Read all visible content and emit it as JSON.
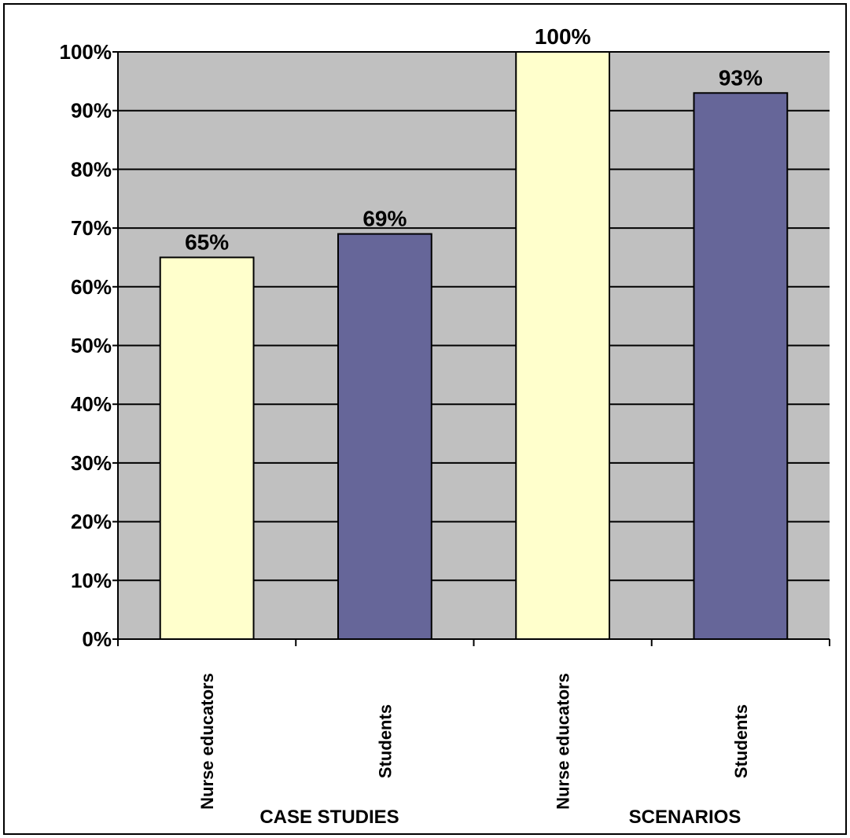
{
  "chart_data": {
    "type": "bar",
    "categories": [
      "Nurse educators",
      "Students",
      "Nurse educators",
      "Students"
    ],
    "groups": [
      "CASE STUDIES",
      "SCENARIOS"
    ],
    "values": [
      65,
      69,
      100,
      93
    ],
    "data_labels": [
      "65%",
      "69%",
      "100%",
      "93%"
    ],
    "ylim": [
      0,
      100
    ],
    "y_ticks": [
      "0%",
      "10%",
      "20%",
      "30%",
      "40%",
      "50%",
      "60%",
      "70%",
      "80%",
      "90%",
      "100%"
    ],
    "title": "",
    "xlabel": "",
    "ylabel": "",
    "grid": true,
    "legend": "none"
  },
  "colors": {
    "plot_background": "#c0c0c0",
    "bar_nurse_educators": "#ffffcc",
    "bar_students": "#666699",
    "gridline": "#000000",
    "page_background": "#ffffff"
  }
}
